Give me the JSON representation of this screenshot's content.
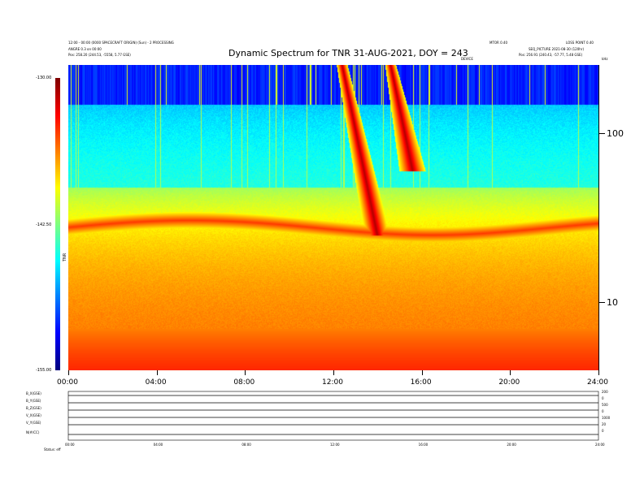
{
  "header": {
    "title": "Dynamic Spectrum for TNR 31-AUG-2021, DOY = 243",
    "left_line1": "12:00 - 00:00 (0000 SPACECRAFT ORIGIN) (Sun) - 2 PROCESSING",
    "left_line2": "ANGRE 0.3 on 00:00",
    "left_line3": "Pos:  258.20 (244.53, -5558, 5.77 GSE)",
    "right_line1": "MTOR 0.40",
    "right_line1b": "LOSS POINT 0.40",
    "right_line2": "SEQ_PICTURE 2021-08-30 (120hr)",
    "right_line3": "Pos:  256.91 (240.43, -57.77, 5.48 GSE)",
    "center_mark": "DEVICE",
    "right_mark": "kHz"
  },
  "colorbar": {
    "label": "TNR",
    "ticks": [
      "-130.00",
      "-142.50",
      "-155.00"
    ]
  },
  "bottom_panel": {
    "labels": [
      "B_X(GSE)",
      "B_Y(GSE)",
      "B_Z(GSE)",
      "V_X(GSE)",
      "V_Y(GSE)",
      "N(#/CC)"
    ],
    "right_ticks": [
      "200",
      "0",
      "500",
      "0",
      "1000",
      "20",
      "0"
    ],
    "status_label": "Status:",
    "status_value": "eff",
    "x_ticks": [
      "00:00",
      "04:00",
      "08:00",
      "12:00",
      "16:00",
      "20:00",
      "24:00"
    ]
  },
  "chart_data": {
    "type": "heatmap",
    "title": "Dynamic Spectrum for TNR 31-AUG-2021, DOY = 243",
    "x_ticks": [
      "00:00",
      "04:00",
      "08:00",
      "12:00",
      "16:00",
      "20:00",
      "24:00"
    ],
    "xlim_hours": [
      0,
      24
    ],
    "y_scale": "log",
    "y_ticks": [
      "100",
      "10"
    ],
    "ylim_khz": [
      4,
      256
    ],
    "colorbar_range": [
      -155.0,
      -130.0
    ],
    "colorbar_ticks": [
      -130.0,
      -142.5,
      -155.0
    ],
    "features": [
      {
        "name": "type III burst 1",
        "start_hour": 12.4,
        "end_hour": 14.0,
        "freq_khz_top": 256,
        "freq_khz_bottom": 25
      },
      {
        "name": "type III burst 2",
        "start_hour": 14.6,
        "end_hour": 15.6,
        "freq_khz_top": 256,
        "freq_khz_bottom": 60
      },
      {
        "name": "plasma line",
        "freq_khz": 28
      }
    ]
  }
}
